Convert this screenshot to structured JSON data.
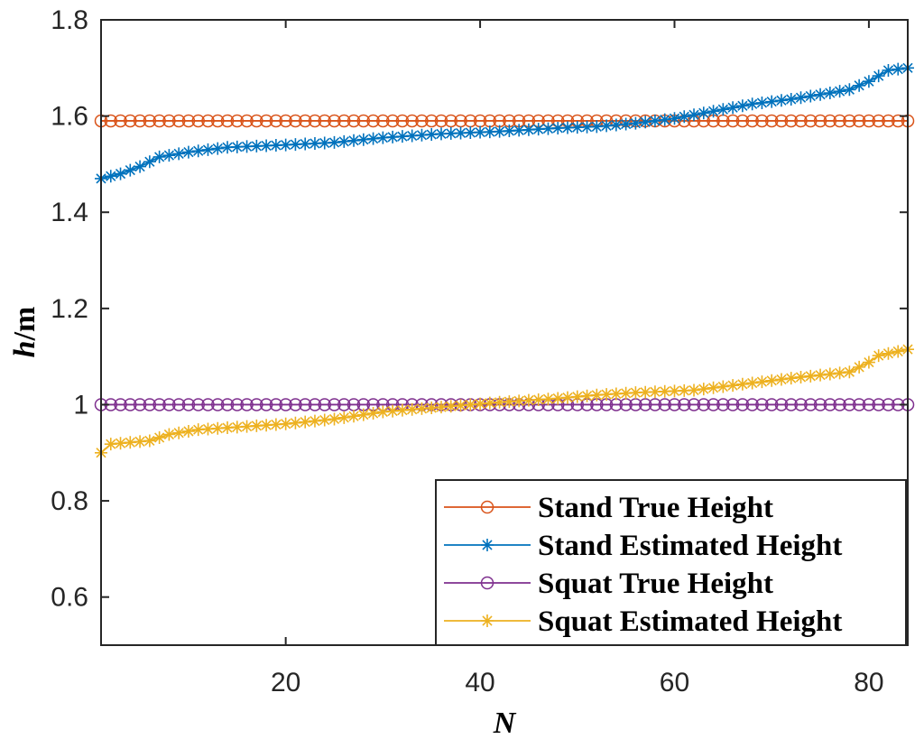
{
  "chart_data": {
    "type": "line",
    "title": "",
    "xlabel": "N",
    "ylabel_italic": "h",
    "ylabel_rest": "/m",
    "xlim": [
      1,
      84
    ],
    "ylim": [
      0.5,
      1.8
    ],
    "xticks": [
      20,
      40,
      60,
      80
    ],
    "yticks": [
      0.6,
      0.8,
      1,
      1.2,
      1.4,
      1.6,
      1.8
    ],
    "xtick_labels": [
      "20",
      "40",
      "60",
      "80"
    ],
    "ytick_labels": [
      "0.6",
      "0.8",
      "1",
      "1.2",
      "1.4",
      "1.6",
      "1.8"
    ],
    "grid": false,
    "legend_position": "bottom-right",
    "n_points": 84,
    "series": [
      {
        "name": "Stand True Height",
        "color": "#D95319",
        "marker": "circle",
        "constant": 1.59
      },
      {
        "name": "Stand Estimated Height",
        "color": "#0072BD",
        "marker": "asterisk",
        "anchors": [
          [
            1,
            1.47
          ],
          [
            3,
            1.48
          ],
          [
            5,
            1.495
          ],
          [
            7,
            1.515
          ],
          [
            10,
            1.525
          ],
          [
            14,
            1.535
          ],
          [
            20,
            1.54
          ],
          [
            25,
            1.545
          ],
          [
            30,
            1.555
          ],
          [
            36,
            1.563
          ],
          [
            42,
            1.568
          ],
          [
            48,
            1.575
          ],
          [
            52,
            1.578
          ],
          [
            56,
            1.585
          ],
          [
            60,
            1.595
          ],
          [
            64,
            1.61
          ],
          [
            68,
            1.625
          ],
          [
            72,
            1.635
          ],
          [
            76,
            1.648
          ],
          [
            78,
            1.655
          ],
          [
            80,
            1.672
          ],
          [
            82,
            1.695
          ],
          [
            84,
            1.7
          ]
        ]
      },
      {
        "name": "Squat True Height",
        "color": "#7E2F8E",
        "marker": "circle",
        "constant": 1.0
      },
      {
        "name": "Squat Estimated Height",
        "color": "#EDB120",
        "marker": "asterisk",
        "anchors": [
          [
            1,
            0.9
          ],
          [
            2,
            0.918
          ],
          [
            6,
            0.925
          ],
          [
            8,
            0.938
          ],
          [
            11,
            0.948
          ],
          [
            20,
            0.96
          ],
          [
            25,
            0.97
          ],
          [
            30,
            0.985
          ],
          [
            36,
            0.995
          ],
          [
            42,
            1.005
          ],
          [
            48,
            1.013
          ],
          [
            52,
            1.02
          ],
          [
            56,
            1.025
          ],
          [
            62,
            1.03
          ],
          [
            66,
            1.04
          ],
          [
            72,
            1.055
          ],
          [
            78,
            1.068
          ],
          [
            80,
            1.088
          ],
          [
            81,
            1.102
          ],
          [
            84,
            1.115
          ]
        ]
      }
    ]
  }
}
